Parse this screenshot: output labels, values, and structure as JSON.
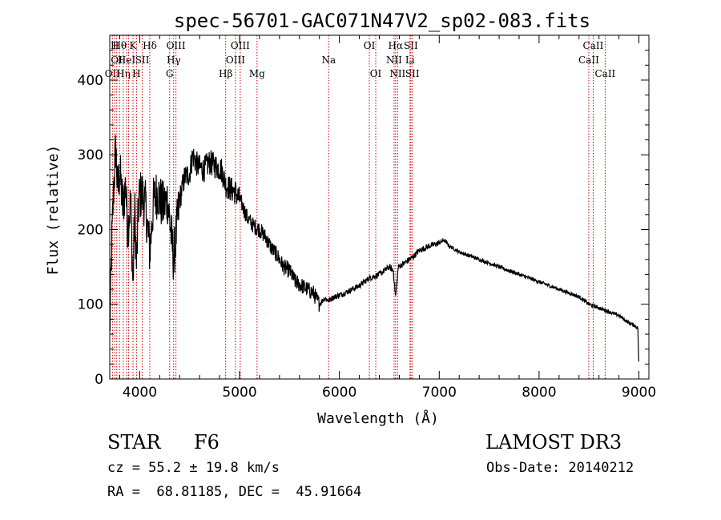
{
  "chart_data": {
    "type": "line",
    "title": "spec-56701-GAC071N47V2_sp02-083.fits",
    "xlabel": "Wavelength (Å)",
    "ylabel": "Flux (relative)",
    "xlim": [
      3700,
      9100
    ],
    "ylim": [
      0,
      460
    ],
    "xticks": [
      4000,
      5000,
      6000,
      7000,
      8000,
      9000
    ],
    "yticks": [
      0,
      100,
      200,
      300,
      400
    ],
    "grid": false,
    "series": [
      {
        "name": "spectrum",
        "x": [
          3700,
          3720,
          3740,
          3760,
          3780,
          3800,
          3830,
          3860,
          3880,
          3910,
          3933,
          3950,
          3968,
          3990,
          4020,
          4060,
          4101,
          4140,
          4180,
          4230,
          4280,
          4340,
          4400,
          4450,
          4500,
          4530,
          4580,
          4640,
          4700,
          4760,
          4820,
          4861,
          4900,
          4960,
          5020,
          5080,
          5140,
          5200,
          5260,
          5320,
          5380,
          5440,
          5500,
          5560,
          5620,
          5680,
          5740,
          5800,
          5850,
          5893,
          5950,
          6000,
          6100,
          6200,
          6300,
          6400,
          6500,
          6540,
          6563,
          6590,
          6650,
          6700,
          6750,
          6800,
          6900,
          7000,
          7050,
          7100,
          7200,
          7300,
          7400,
          7500,
          7600,
          7700,
          7800,
          7900,
          8000,
          8100,
          8200,
          8300,
          8400,
          8500,
          8600,
          8700,
          8800,
          8850,
          8900,
          8950,
          8990,
          9000
        ],
        "y": [
          60,
          180,
          260,
          310,
          250,
          280,
          230,
          260,
          200,
          240,
          120,
          230,
          150,
          240,
          250,
          230,
          170,
          240,
          250,
          230,
          240,
          160,
          240,
          270,
          275,
          300,
          285,
          280,
          290,
          285,
          280,
          260,
          255,
          250,
          235,
          215,
          205,
          200,
          190,
          175,
          165,
          150,
          145,
          130,
          125,
          120,
          115,
          100,
          108,
          105,
          110,
          112,
          118,
          125,
          135,
          140,
          150,
          145,
          110,
          150,
          155,
          160,
          165,
          172,
          178,
          182,
          186,
          178,
          170,
          165,
          160,
          155,
          150,
          145,
          140,
          135,
          130,
          125,
          120,
          115,
          110,
          100,
          95,
          90,
          85,
          80,
          75,
          72,
          68,
          10
        ]
      }
    ],
    "line_markers": [
      {
        "wavelength": 3727,
        "label": "OII",
        "row": 3
      },
      {
        "wavelength": 3750,
        "label": "H",
        "row": 1
      },
      {
        "wavelength": 3770,
        "label": "OI",
        "row": 2
      },
      {
        "wavelength": 3798,
        "label": "Hθ",
        "row": 1
      },
      {
        "wavelength": 3835,
        "label": "Hη",
        "row": 3
      },
      {
        "wavelength": 3869,
        "label": "HeI",
        "row": 2
      },
      {
        "wavelength": 3889,
        "label": "",
        "row": 0
      },
      {
        "wavelength": 3933,
        "label": "K",
        "row": 1
      },
      {
        "wavelength": 3968,
        "label": "H",
        "row": 3
      },
      {
        "wavelength": 4026,
        "label": "SII",
        "row": 2
      },
      {
        "wavelength": 4101,
        "label": "Hδ",
        "row": 1
      },
      {
        "wavelength": 4300,
        "label": "G",
        "row": 3
      },
      {
        "wavelength": 4340,
        "label": "Hγ",
        "row": 2
      },
      {
        "wavelength": 4363,
        "label": "OIII",
        "row": 1
      },
      {
        "wavelength": 4861,
        "label": "Hβ",
        "row": 3
      },
      {
        "wavelength": 4959,
        "label": "OIII",
        "row": 2
      },
      {
        "wavelength": 5007,
        "label": "OIII",
        "row": 1
      },
      {
        "wavelength": 5175,
        "label": "Mg",
        "row": 3
      },
      {
        "wavelength": 5893,
        "label": "Na",
        "row": 2
      },
      {
        "wavelength": 6300,
        "label": "OI",
        "row": 1
      },
      {
        "wavelength": 6364,
        "label": "OI",
        "row": 3
      },
      {
        "wavelength": 6548,
        "label": "NII",
        "row": 2
      },
      {
        "wavelength": 6563,
        "label": "Hα",
        "row": 1
      },
      {
        "wavelength": 6583,
        "label": "NII",
        "row": 3
      },
      {
        "wavelength": 6707,
        "label": "Li",
        "row": 2
      },
      {
        "wavelength": 6716,
        "label": "SII",
        "row": 1
      },
      {
        "wavelength": 6731,
        "label": "SII",
        "row": 3
      },
      {
        "wavelength": 8498,
        "label": "CaII",
        "row": 2
      },
      {
        "wavelength": 8542,
        "label": "CaII",
        "row": 1
      },
      {
        "wavelength": 8662,
        "label": "CaII",
        "row": 3
      }
    ],
    "colors": {
      "spectrum": "#000000",
      "markers": "#cc0000",
      "axes": "#000000"
    }
  },
  "info": {
    "class": "STAR",
    "subclass": "F6",
    "survey": "LAMOST DR3",
    "redshift": "cz = 55.2 ± 19.8 km/s",
    "obs_date": "Obs-Date: 20140212",
    "coords": "RA =  68.81185, DEC =  45.91664"
  }
}
